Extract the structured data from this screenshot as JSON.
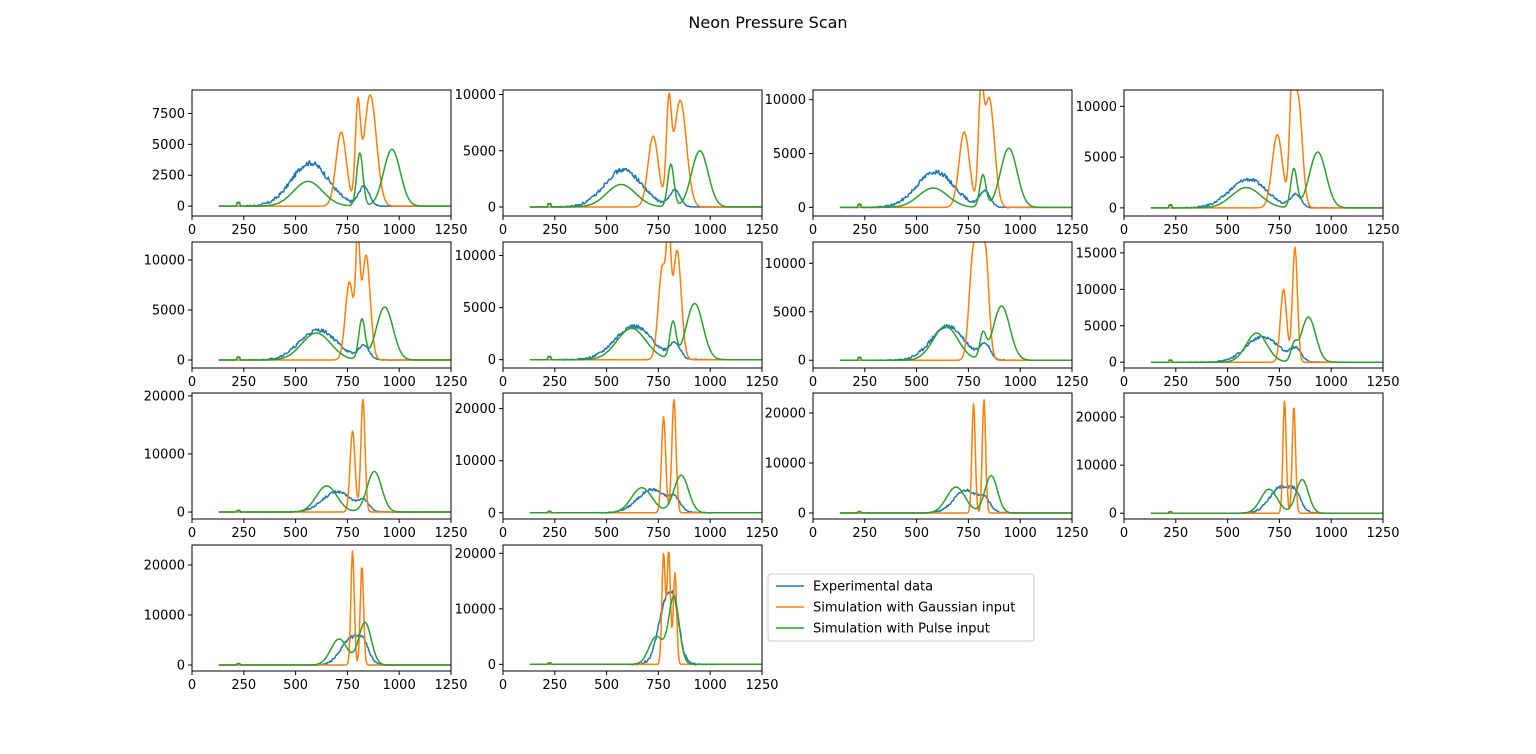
{
  "figure": {
    "title": "Neon Pressure Scan"
  },
  "colors": {
    "experimental": "#1f77b4",
    "gaussian": "#ff7f0e",
    "pulse": "#2ca02c"
  },
  "chart_data": {
    "type": "line",
    "grid": false,
    "legend": {
      "placement": "lower-center, right of last subplot",
      "entries": [
        "Experimental data",
        "Simulation with Gaussian input",
        "Simulation with Pulse input"
      ]
    },
    "x_ticks": [
      0,
      250,
      500,
      750,
      1000,
      1250
    ],
    "xlim": [
      0,
      1250
    ],
    "subplots": [
      {
        "ylim": [
          -800,
          9400
        ],
        "y_ticks": [
          0,
          2500,
          5000,
          7500
        ],
        "exp": {
          "c": 570,
          "w": 90,
          "a": 3500
        },
        "gauss": [
          [
            720,
            25,
            6000
          ],
          [
            800,
            12,
            7500
          ],
          [
            860,
            30,
            9000
          ]
        ],
        "pulse": [
          [
            560,
            70,
            2000
          ],
          [
            810,
            15,
            4300
          ],
          [
            965,
            40,
            4600
          ]
        ]
      },
      {
        "ylim": [
          -800,
          10400
        ],
        "y_ticks": [
          0,
          5000,
          10000
        ],
        "exp": {
          "c": 580,
          "w": 90,
          "a": 3300
        },
        "gauss": [
          [
            725,
            25,
            6300
          ],
          [
            800,
            12,
            8200
          ],
          [
            855,
            30,
            9500
          ]
        ],
        "pulse": [
          [
            570,
            70,
            2000
          ],
          [
            810,
            15,
            3800
          ],
          [
            950,
            40,
            5000
          ]
        ]
      },
      {
        "ylim": [
          -800,
          10900
        ],
        "y_ticks": [
          0,
          5000,
          10000
        ],
        "exp": {
          "c": 590,
          "w": 90,
          "a": 3300
        },
        "gauss": [
          [
            730,
            25,
            7000
          ],
          [
            810,
            12,
            9000
          ],
          [
            850,
            25,
            10200
          ]
        ],
        "pulse": [
          [
            580,
            70,
            1800
          ],
          [
            820,
            15,
            3000
          ],
          [
            945,
            40,
            5500
          ]
        ]
      },
      {
        "ylim": [
          -800,
          11600
        ],
        "y_ticks": [
          0,
          5000,
          10000
        ],
        "exp": {
          "c": 600,
          "w": 90,
          "a": 2800
        },
        "gauss": [
          [
            740,
            25,
            7200
          ],
          [
            810,
            12,
            9800
          ],
          [
            840,
            20,
            10800
          ]
        ],
        "pulse": [
          [
            590,
            70,
            2000
          ],
          [
            820,
            15,
            3800
          ],
          [
            935,
            40,
            5500
          ]
        ]
      },
      {
        "ylim": [
          -800,
          11800
        ],
        "y_ticks": [
          0,
          5000,
          10000
        ],
        "exp": {
          "c": 610,
          "w": 90,
          "a": 3000
        },
        "gauss": [
          [
            760,
            20,
            7800
          ],
          [
            800,
            10,
            10800
          ],
          [
            840,
            20,
            10500
          ]
        ],
        "pulse": [
          [
            600,
            70,
            2700
          ],
          [
            820,
            15,
            4000
          ],
          [
            930,
            40,
            5300
          ]
        ]
      },
      {
        "ylim": [
          -800,
          11300
        ],
        "y_ticks": [
          0,
          5000,
          10000
        ],
        "exp": {
          "c": 630,
          "w": 90,
          "a": 3200
        },
        "gauss": [
          [
            770,
            20,
            9000
          ],
          [
            800,
            10,
            9500
          ],
          [
            840,
            20,
            10500
          ]
        ],
        "pulse": [
          [
            620,
            70,
            3000
          ],
          [
            820,
            15,
            3500
          ],
          [
            925,
            40,
            5400
          ]
        ]
      },
      {
        "ylim": [
          -800,
          12200
        ],
        "y_ticks": [
          0,
          5000,
          10000
        ],
        "exp": {
          "c": 650,
          "w": 80,
          "a": 3500
        },
        "gauss": [
          [
            775,
            20,
            11500
          ],
          [
            800,
            10,
            9000
          ],
          [
            830,
            18,
            11800
          ]
        ],
        "pulse": [
          [
            640,
            60,
            3500
          ],
          [
            820,
            15,
            2500
          ],
          [
            910,
            40,
            5600
          ]
        ]
      },
      {
        "ylim": [
          -800,
          16500
        ],
        "y_ticks": [
          0,
          5000,
          10000,
          15000
        ],
        "exp": {
          "c": 670,
          "w": 80,
          "a": 3500
        },
        "gauss": [
          [
            770,
            15,
            10000
          ],
          [
            825,
            12,
            15800
          ]
        ],
        "pulse": [
          [
            640,
            50,
            4000
          ],
          [
            820,
            15,
            2000
          ],
          [
            890,
            35,
            6200
          ]
        ]
      },
      {
        "ylim": [
          -1200,
          20500
        ],
        "y_ticks": [
          0,
          10000,
          20000
        ],
        "exp": {
          "c": 700,
          "w": 70,
          "a": 3500
        },
        "gauss": [
          [
            775,
            12,
            14000
          ],
          [
            825,
            10,
            19500
          ]
        ],
        "pulse": [
          [
            650,
            50,
            4500
          ],
          [
            880,
            35,
            7000
          ]
        ]
      },
      {
        "ylim": [
          -1200,
          23000
        ],
        "y_ticks": [
          0,
          10000,
          20000
        ],
        "exp": {
          "c": 720,
          "w": 70,
          "a": 4500
        },
        "gauss": [
          [
            775,
            10,
            18500
          ],
          [
            825,
            10,
            21800
          ]
        ],
        "pulse": [
          [
            670,
            50,
            4800
          ],
          [
            860,
            35,
            7200
          ]
        ]
      },
      {
        "ylim": [
          -1200,
          24000
        ],
        "y_ticks": [
          0,
          10000,
          20000
        ],
        "exp": {
          "c": 740,
          "w": 60,
          "a": 4500
        },
        "gauss": [
          [
            775,
            8,
            22000
          ],
          [
            825,
            8,
            22800
          ]
        ],
        "pulse": [
          [
            690,
            45,
            5200
          ],
          [
            860,
            30,
            7500
          ]
        ]
      },
      {
        "ylim": [
          -1200,
          25000
        ],
        "y_ticks": [
          0,
          10000,
          20000
        ],
        "exp": {
          "c": 760,
          "w": 55,
          "a": 5500
        },
        "gauss": [
          [
            775,
            8,
            23500
          ],
          [
            820,
            8,
            22500
          ]
        ],
        "pulse": [
          [
            700,
            40,
            5000
          ],
          [
            860,
            30,
            7000
          ]
        ]
      },
      {
        "ylim": [
          -1200,
          24000
        ],
        "y_ticks": [
          0,
          10000,
          20000
        ],
        "exp": {
          "c": 770,
          "w": 50,
          "a": 5500
        },
        "gauss": [
          [
            775,
            8,
            23000
          ],
          [
            820,
            8,
            20000
          ]
        ],
        "pulse": [
          [
            710,
            40,
            5200
          ],
          [
            835,
            30,
            8500
          ]
        ]
      },
      {
        "ylim": [
          -1200,
          21500
        ],
        "y_ticks": [
          0,
          10000,
          20000
        ],
        "exp": {
          "c": 790,
          "w": 40,
          "a": 11000
        },
        "gauss": [
          [
            775,
            8,
            20000
          ],
          [
            800,
            8,
            20500
          ],
          [
            830,
            8,
            16500
          ]
        ],
        "pulse": [
          [
            740,
            35,
            5000
          ],
          [
            825,
            25,
            12000
          ]
        ]
      }
    ]
  }
}
